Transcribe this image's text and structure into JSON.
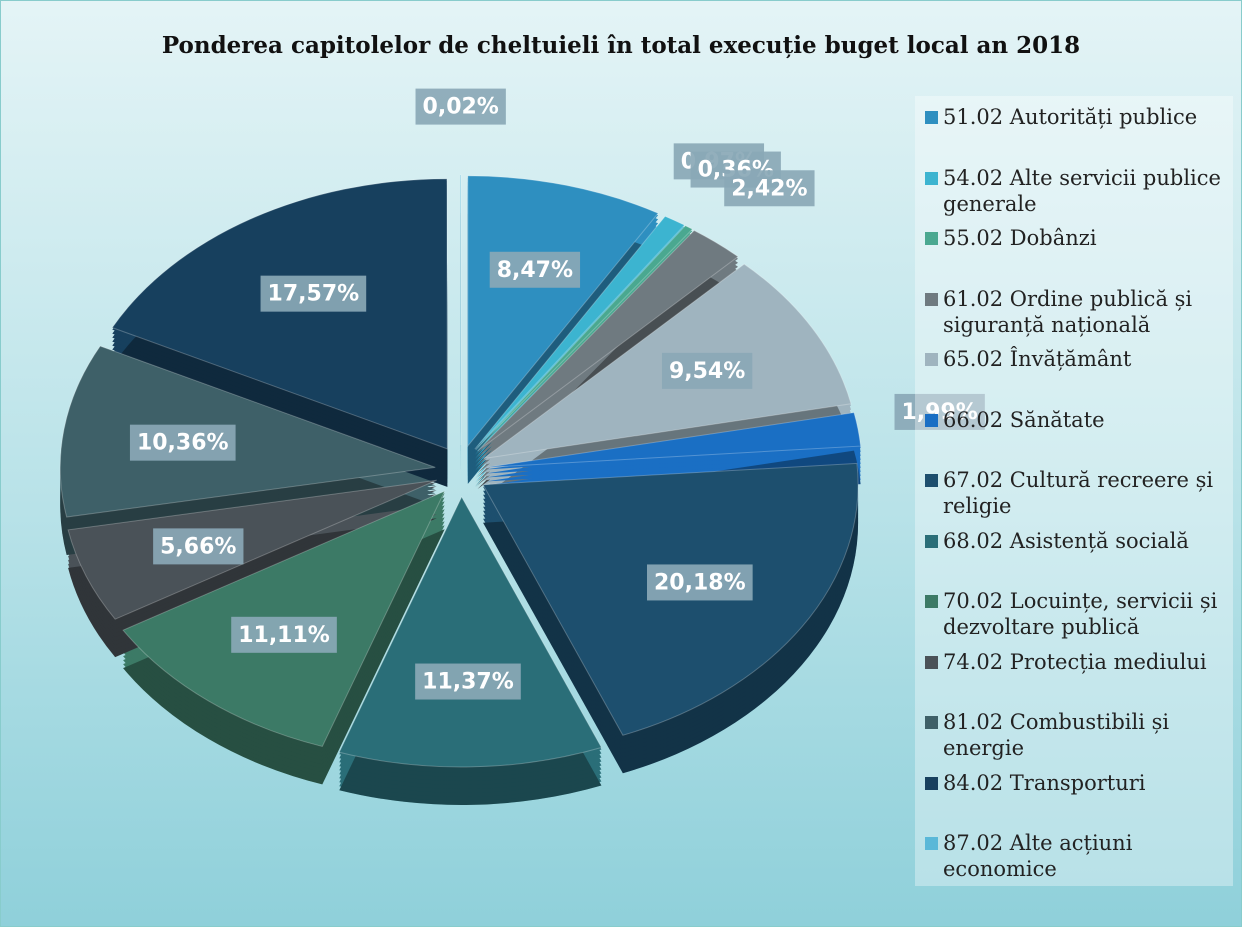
{
  "chart_data": {
    "type": "pie",
    "title": "Ponderea capitolelor de cheltuieli în total execuție buget local an 2018",
    "categories": [
      "51.02 Autorități publice",
      "54.02 Alte servicii publice generale",
      "55.02 Dobânzi",
      "61.02 Ordine publică și siguranță națională",
      "65.02 Învățământ",
      "66.02 Sănătate",
      "67.02 Cultură recreere și religie",
      "68.02 Asistență socială",
      "70.02 Locuințe, servicii și dezvoltare publică",
      "74.02 Protecția mediului",
      "81.02 Combustibili și energie",
      "84.02 Transporturi",
      "87.02 Alte acțiuni economice"
    ],
    "values": [
      8.47,
      0.97,
      0.36,
      2.42,
      9.54,
      1.99,
      20.18,
      11.37,
      11.11,
      5.66,
      10.36,
      17.57,
      0.02
    ],
    "value_labels": [
      "8,47%",
      "0,97%",
      "0,36%",
      "2,42%",
      "9,54%",
      "1,99%",
      "20,18%",
      "11,37%",
      "11,11%",
      "5,66%",
      "10,36%",
      "17,57%",
      "0,02%"
    ],
    "colors": [
      "#2e8fc0",
      "#3cb4d0",
      "#4aa890",
      "#6f7a80",
      "#9fb4bf",
      "#1a6fc4",
      "#1d4f6e",
      "#2a6e78",
      "#3c7a66",
      "#4a5258",
      "#3e6068",
      "#17405e",
      "#5ab8d8"
    ],
    "legend": "right"
  }
}
